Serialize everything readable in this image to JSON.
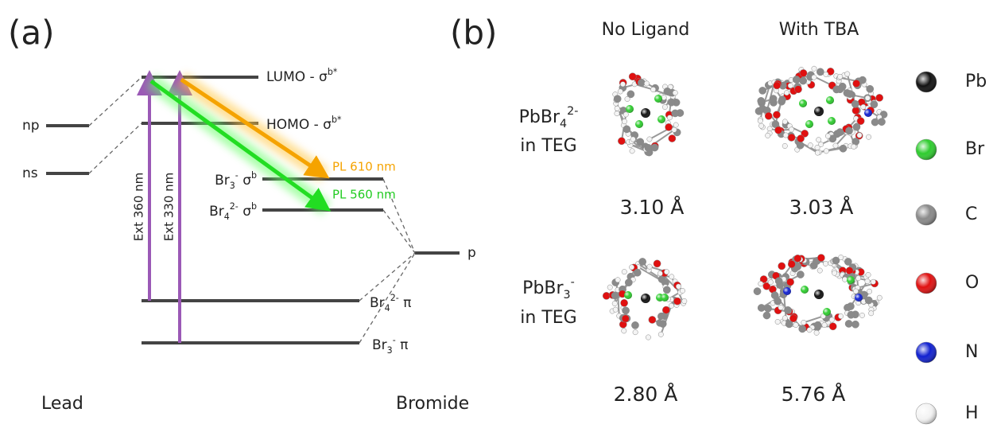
{
  "panel_a": {
    "label": "(a)",
    "lumo": [
      {
        "text": "LUMO - σ"
      },
      {
        "sup": "b*"
      }
    ],
    "homo": [
      {
        "text": "HOMO - σ"
      },
      {
        "sup": "b*"
      }
    ],
    "np": [
      {
        "text": "np"
      }
    ],
    "ns": [
      {
        "text": "ns"
      }
    ],
    "br3_sigma": [
      {
        "text": "Br"
      },
      {
        "sub": "3"
      },
      {
        "sup": "-"
      },
      {
        "text": " σ"
      },
      {
        "sup": "b"
      }
    ],
    "br4_sigma": [
      {
        "text": "Br"
      },
      {
        "sub": "4"
      },
      {
        "sup": "2-"
      },
      {
        "text": " σ"
      },
      {
        "sup": "b"
      }
    ],
    "p": [
      {
        "text": "p"
      }
    ],
    "br4_pi": [
      {
        "text": "Br"
      },
      {
        "sub": "4"
      },
      {
        "sup": "2-"
      },
      {
        "text": " π"
      }
    ],
    "br3_pi": [
      {
        "text": "Br"
      },
      {
        "sub": "3"
      },
      {
        "sup": "-"
      },
      {
        "text": " π"
      }
    ],
    "excitations": [
      "Ext 360 nm",
      "Ext 330 nm"
    ],
    "emissions": [
      "PL 610 nm",
      "PL 560 nm"
    ],
    "lead": "Lead",
    "bromide": "Bromide"
  },
  "panel_b": {
    "label": "(b)",
    "columns": [
      "No Ligand",
      "With TBA"
    ],
    "rows": [
      {
        "line1": [
          {
            "text": "PbBr"
          },
          {
            "sub": "4"
          },
          {
            "sup": "2-"
          }
        ],
        "line2": [
          {
            "text": "in TEG"
          }
        ],
        "distances": [
          "3.10 Å",
          "3.03 Å"
        ]
      },
      {
        "line1": [
          {
            "text": "PbBr"
          },
          {
            "sub": "3"
          },
          {
            "sup": "-"
          }
        ],
        "line2": [
          {
            "text": "in TEG"
          }
        ],
        "distances": [
          "2.80 Å",
          "5.76 Å"
        ]
      }
    ],
    "legend": [
      {
        "symbol": "Pb",
        "color": "#111111"
      },
      {
        "symbol": "Br",
        "color": "#2ecc2e"
      },
      {
        "symbol": "C",
        "color": "#8a8a8a"
      },
      {
        "symbol": "O",
        "color": "#e01010"
      },
      {
        "symbol": "N",
        "color": "#1020d0"
      },
      {
        "symbol": "H",
        "color": "#f4f4f4"
      }
    ]
  }
}
